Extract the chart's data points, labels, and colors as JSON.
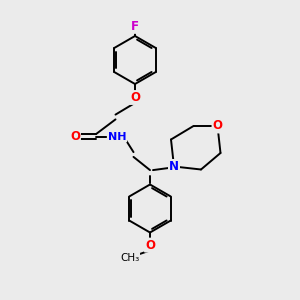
{
  "bg_color": "#ebebeb",
  "bond_color": "#000000",
  "bond_width": 1.4,
  "atom_colors": {
    "F": "#cc00cc",
    "O": "#ff0000",
    "N": "#0000ff",
    "H": "#aaaaaa",
    "C": "#000000"
  },
  "font_size": 8.5,
  "figsize": [
    3.0,
    3.0
  ],
  "dpi": 100
}
